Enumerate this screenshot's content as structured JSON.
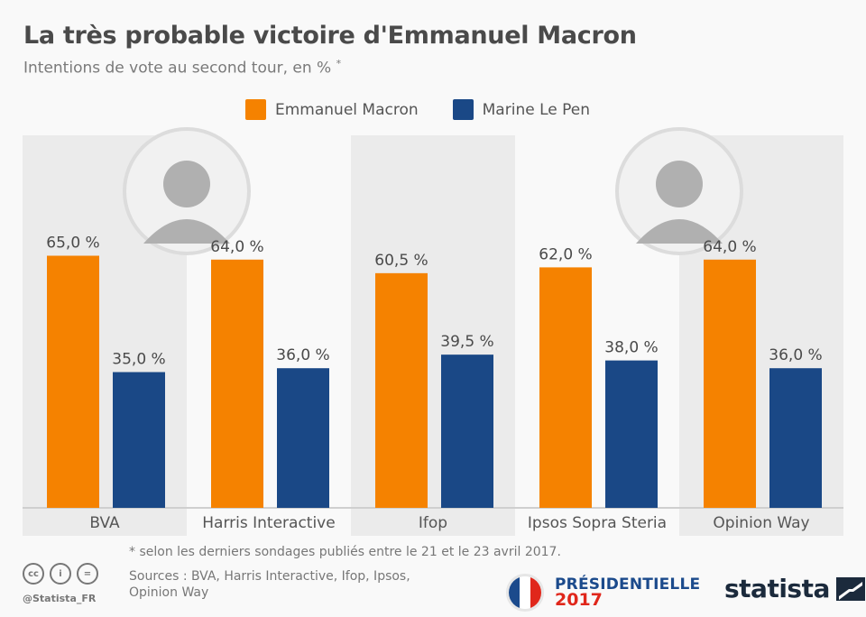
{
  "header": {
    "title": "La très probable victoire d'Emmanuel Macron",
    "subtitle": "Intentions de vote au second tour, en %",
    "subtitle_marker": "*"
  },
  "legend": [
    {
      "label": "Emmanuel Macron",
      "color": "#f58200"
    },
    {
      "label": "Marine Le Pen",
      "color": "#1a4886"
    }
  ],
  "portraits": [
    {
      "name": "macron-portrait",
      "above_category": "BVA / Harris Interactive"
    },
    {
      "name": "le-pen-portrait",
      "above_category": "Ipsos Sopra Steria / Opinion Way"
    }
  ],
  "chart_data": {
    "type": "bar",
    "title": "La très probable victoire d'Emmanuel Macron",
    "subtitle": "Intentions de vote au second tour, en %",
    "xlabel": "",
    "ylabel": "",
    "ylim": [
      0,
      100
    ],
    "grid": false,
    "legend_position": "top-center",
    "categories": [
      "BVA",
      "Harris Interactive",
      "Ifop",
      "Ipsos Sopra Steria",
      "Opinion Way"
    ],
    "series": [
      {
        "name": "Emmanuel Macron",
        "color": "#f58200",
        "values": [
          65.0,
          64.0,
          60.5,
          62.0,
          64.0
        ],
        "labels": [
          "65,0 %",
          "64,0 %",
          "60,5 %",
          "62,0 %",
          "64,0 %"
        ]
      },
      {
        "name": "Marine Le Pen",
        "color": "#1a4886",
        "values": [
          35.0,
          36.0,
          39.5,
          38.0,
          36.0
        ],
        "labels": [
          "35,0 %",
          "36,0 %",
          "39,5 %",
          "38,0 %",
          "36,0 %"
        ]
      }
    ]
  },
  "footer": {
    "footnote": "* selon les derniers sondages publiés entre le 21 et le 23 avril 2017.",
    "sources": "Sources : BVA, Harris Interactive, Ifop, Ipsos, Opinion Way",
    "handle": "@Statista_FR",
    "cc_icons": [
      "cc-icon",
      "attribution-icon",
      "no-derivatives-icon"
    ],
    "cc_glyphs": [
      "cc",
      "i",
      "="
    ],
    "presidentielle_line1": "PRÉSIDENTIELLE",
    "presidentielle_line2": "2017",
    "flag_colors": [
      "#1b4a8c",
      "#ffffff",
      "#e0271b"
    ],
    "brand": "statista"
  }
}
